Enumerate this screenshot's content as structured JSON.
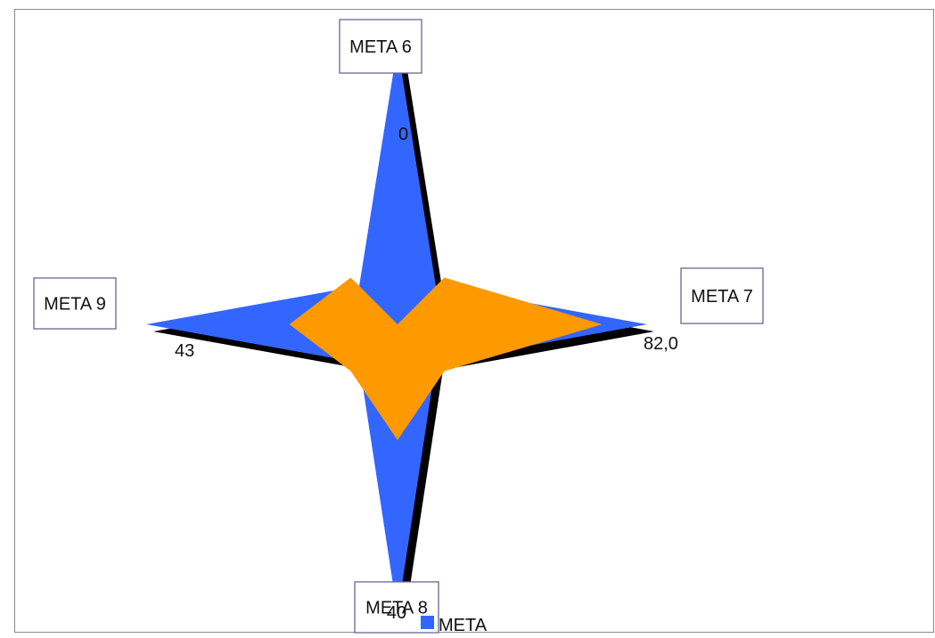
{
  "chart_data": {
    "type": "radar",
    "categories": [
      "META 6",
      "META 7",
      "META 8",
      "META 9"
    ],
    "series": [
      {
        "name": "META",
        "color": "#3366ff",
        "values": [
          100,
          100,
          100,
          100
        ]
      },
      {
        "name": "",
        "color": "#ff9900",
        "values": [
          0,
          82.0,
          40,
          43
        ]
      }
    ],
    "data_labels": [
      "0",
      "82,0",
      "40",
      "43"
    ],
    "rmax": 100,
    "legend": {
      "position": "bottom",
      "entries": [
        "META"
      ]
    }
  }
}
